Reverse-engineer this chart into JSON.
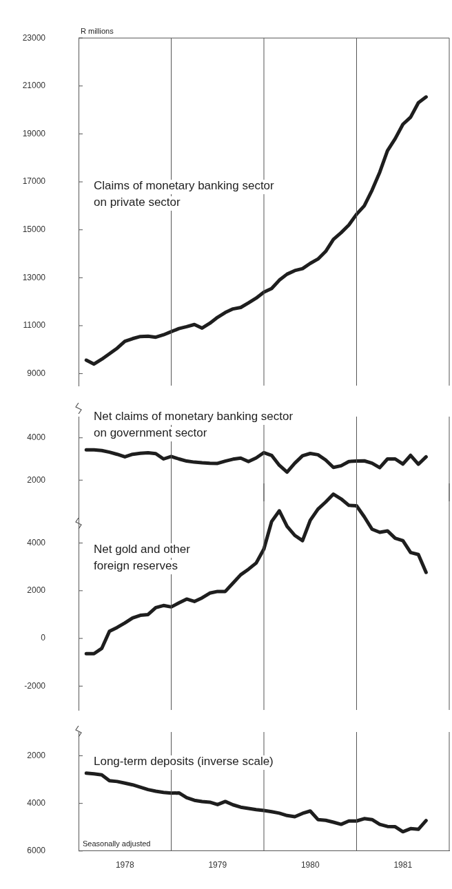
{
  "chart_data": [
    {
      "type": "line",
      "ylabel": "R millions",
      "tick_labels": "y",
      "x": [
        "1978-02",
        "1978-03",
        "1978-04",
        "1978-05",
        "1978-06",
        "1978-07",
        "1978-08",
        "1978-09",
        "1978-10",
        "1978-11",
        "1978-12",
        "1979-01",
        "1979-02",
        "1979-03",
        "1979-04",
        "1979-05",
        "1979-06",
        "1979-07",
        "1979-08",
        "1979-09",
        "1979-10",
        "1979-11",
        "1979-12",
        "1980-01",
        "1980-02",
        "1980-03",
        "1980-04",
        "1980-05",
        "1980-06",
        "1980-07",
        "1980-08",
        "1980-09",
        "1980-10",
        "1980-11",
        "1980-12",
        "1981-01",
        "1981-02",
        "1981-03",
        "1981-04",
        "1981-05",
        "1981-06",
        "1981-07",
        "1981-08",
        "1981-09",
        "1981-10"
      ],
      "xlim": [
        "1978-01",
        "1982-01"
      ],
      "series": [
        {
          "name": "Claims of monetary banking sector\non private sector",
          "color": "#1e1e1e",
          "values": [
            9560,
            9400,
            9600,
            9830,
            10060,
            10350,
            10460,
            10550,
            10560,
            10520,
            10620,
            10750,
            10880,
            10960,
            11050,
            10900,
            11100,
            11350,
            11550,
            11700,
            11760,
            11950,
            12150,
            12400,
            12550,
            12900,
            13150,
            13300,
            13380,
            13600,
            13780,
            14100,
            14600,
            14880,
            15200,
            15650,
            16000,
            16650,
            17400,
            18300,
            18800,
            19400,
            19700,
            20300,
            20540
          ]
        }
      ],
      "ylim": [
        8500,
        23000
      ],
      "yticks": [
        9000,
        11000,
        13000,
        15000,
        17000,
        19000,
        21000,
        23000
      ],
      "ref_lines": [
        {
          "axis": "x",
          "value": "1979-01"
        },
        {
          "axis": "x",
          "value": "1980-01"
        },
        {
          "axis": "x",
          "value": "1981-01"
        }
      ]
    },
    {
      "type": "line",
      "tick_labels": "y",
      "x": [
        "1978-02",
        "1978-03",
        "1978-04",
        "1978-05",
        "1978-06",
        "1978-07",
        "1978-08",
        "1978-09",
        "1978-10",
        "1978-11",
        "1978-12",
        "1979-01",
        "1979-02",
        "1979-03",
        "1979-04",
        "1979-05",
        "1979-06",
        "1979-07",
        "1979-08",
        "1979-09",
        "1979-10",
        "1979-11",
        "1979-12",
        "1980-01",
        "1980-02",
        "1980-03",
        "1980-04",
        "1980-05",
        "1980-06",
        "1980-07",
        "1980-08",
        "1980-09",
        "1980-10",
        "1980-11",
        "1980-12",
        "1981-01",
        "1981-02",
        "1981-03",
        "1981-04",
        "1981-05",
        "1981-06",
        "1981-07",
        "1981-08",
        "1981-09",
        "1981-10"
      ],
      "xlim": [
        "1978-01",
        "1982-01"
      ],
      "series": [
        {
          "name": "Net claims of monetary banking sector\non government sector",
          "color": "#1e1e1e",
          "values": [
            3430,
            3430,
            3400,
            3320,
            3220,
            3100,
            3220,
            3270,
            3290,
            3250,
            3000,
            3120,
            3000,
            2900,
            2850,
            2820,
            2800,
            2790,
            2900,
            2990,
            3040,
            2880,
            3050,
            3300,
            3170,
            2700,
            2380,
            2800,
            3150,
            3260,
            3200,
            2950,
            2600,
            2680,
            2880,
            2900,
            2910,
            2800,
            2590,
            3000,
            3000,
            2760,
            3170,
            2750,
            3100
          ]
        }
      ],
      "ylim": [
        1000,
        5000
      ],
      "yticks": [
        2000,
        4000
      ],
      "ref_lines": [
        {
          "axis": "x",
          "value": "1979-01"
        },
        {
          "axis": "x",
          "value": "1980-01"
        },
        {
          "axis": "x",
          "value": "1981-01"
        }
      ]
    },
    {
      "type": "line",
      "tick_labels": "y",
      "x": [
        "1978-02",
        "1978-03",
        "1978-04",
        "1978-05",
        "1978-06",
        "1978-07",
        "1978-08",
        "1978-09",
        "1978-10",
        "1978-11",
        "1978-12",
        "1979-01",
        "1979-02",
        "1979-03",
        "1979-04",
        "1979-05",
        "1979-06",
        "1979-07",
        "1979-08",
        "1979-09",
        "1979-10",
        "1979-11",
        "1979-12",
        "1980-01",
        "1980-02",
        "1980-03",
        "1980-04",
        "1980-05",
        "1980-06",
        "1980-07",
        "1980-08",
        "1980-09",
        "1980-10",
        "1980-11",
        "1980-12",
        "1981-01",
        "1981-02",
        "1981-03",
        "1981-04",
        "1981-05",
        "1981-06",
        "1981-07",
        "1981-08",
        "1981-09",
        "1981-10"
      ],
      "xlim": [
        "1978-01",
        "1982-01"
      ],
      "series": [
        {
          "name": "Net gold and other\nforeign reserves",
          "color": "#1e1e1e",
          "values": [
            -640,
            -640,
            -420,
            300,
            460,
            650,
            860,
            970,
            1000,
            1290,
            1380,
            1320,
            1490,
            1650,
            1550,
            1700,
            1900,
            1970,
            1970,
            2320,
            2670,
            2900,
            3160,
            3750,
            4900,
            5350,
            4700,
            4320,
            4100,
            4950,
            5420,
            5720,
            6050,
            5850,
            5580,
            5560,
            5100,
            4580,
            4450,
            4510,
            4200,
            4100,
            3600,
            3520,
            2770
          ]
        }
      ],
      "ylim": [
        -3000,
        6500
      ],
      "yticks": [
        -2000,
        0,
        2000,
        4000
      ],
      "ref_lines": [
        {
          "axis": "x",
          "value": "1979-01"
        },
        {
          "axis": "x",
          "value": "1980-01"
        },
        {
          "axis": "x",
          "value": "1981-01"
        }
      ]
    },
    {
      "type": "line",
      "x": [
        "1978-02",
        "1978-03",
        "1978-04",
        "1978-05",
        "1978-06",
        "1978-07",
        "1978-08",
        "1978-09",
        "1978-10",
        "1978-11",
        "1978-12",
        "1979-01",
        "1979-02",
        "1979-03",
        "1979-04",
        "1979-05",
        "1979-06",
        "1979-07",
        "1979-08",
        "1979-09",
        "1979-10",
        "1979-11",
        "1979-12",
        "1980-01",
        "1980-02",
        "1980-03",
        "1980-04",
        "1980-05",
        "1980-06",
        "1980-07",
        "1980-08",
        "1980-09",
        "1980-10",
        "1980-11",
        "1980-12",
        "1981-01",
        "1981-02",
        "1981-03",
        "1981-04",
        "1981-05",
        "1981-06",
        "1981-07",
        "1981-08",
        "1981-09",
        "1981-10"
      ],
      "xlim": [
        "1978-01",
        "1982-01"
      ],
      "xticks": [
        {
          "value": "1978-07",
          "label": "1978"
        },
        {
          "value": "1979-07",
          "label": "1979"
        },
        {
          "value": "1980-07",
          "label": "1980"
        },
        {
          "value": "1981-07",
          "label": "1981"
        }
      ],
      "series": [
        {
          "name": "Long-term deposits (inverse scale)",
          "color": "#1e1e1e",
          "values": [
            2730,
            2760,
            2800,
            3050,
            3080,
            3150,
            3220,
            3320,
            3420,
            3490,
            3540,
            3570,
            3560,
            3760,
            3870,
            3920,
            3950,
            4050,
            3920,
            4060,
            4160,
            4210,
            4260,
            4300,
            4350,
            4410,
            4510,
            4560,
            4420,
            4320,
            4680,
            4710,
            4790,
            4880,
            4740,
            4740,
            4640,
            4680,
            4880,
            4970,
            4980,
            5190,
            5060,
            5090,
            4720
          ]
        }
      ],
      "ylim": [
        6000,
        1000
      ],
      "yticks": [
        2000,
        4000,
        6000
      ],
      "annotations": [
        "Seasonally adjusted"
      ],
      "ref_lines": [
        {
          "axis": "x",
          "value": "1979-01"
        },
        {
          "axis": "x",
          "value": "1980-01"
        },
        {
          "axis": "x",
          "value": "1981-01"
        }
      ]
    }
  ]
}
